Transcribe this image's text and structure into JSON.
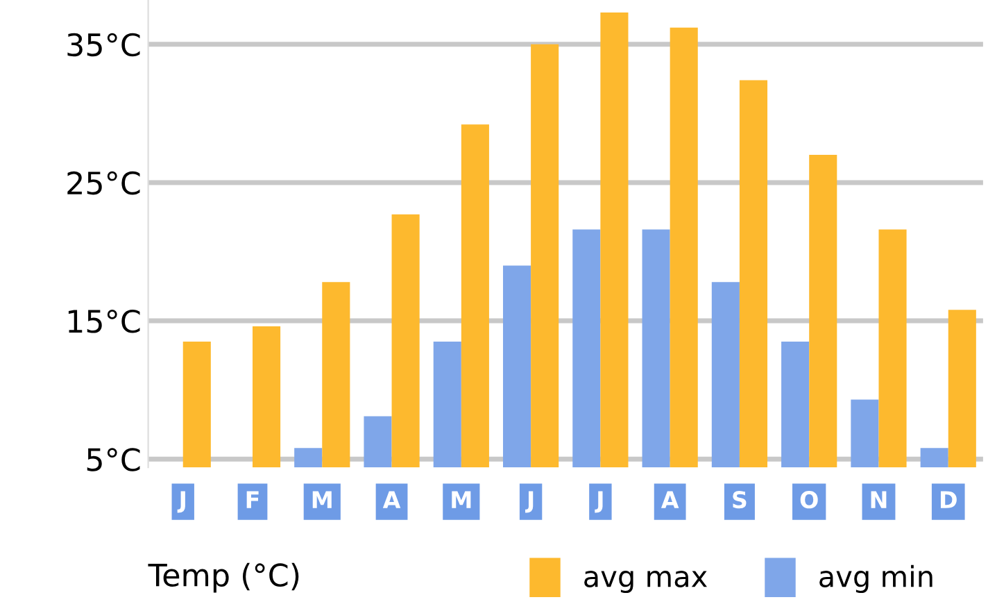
{
  "chart_data": {
    "type": "bar",
    "categories": [
      "J",
      "F",
      "M",
      "A",
      "M",
      "J",
      "J",
      "A",
      "S",
      "O",
      "N",
      "D"
    ],
    "series": [
      {
        "name": "avg min",
        "color": "#7fa6e9",
        "values": [
          null,
          null,
          5.8,
          8.1,
          13.5,
          19.0,
          21.6,
          21.6,
          17.8,
          13.5,
          9.3,
          5.8
        ]
      },
      {
        "name": "avg max",
        "color": "#fdb92e",
        "values": [
          13.5,
          14.6,
          17.8,
          22.7,
          29.2,
          35.0,
          37.3,
          36.2,
          32.4,
          27.0,
          21.6,
          15.8
        ]
      }
    ],
    "legend_title": "Temp (°C)",
    "legend": "bottom",
    "grid": "y",
    "ylim": [
      4.4,
      38.2
    ],
    "yticks": [
      {
        "value": 5,
        "label": "5°C"
      },
      {
        "value": 15,
        "label": "15°C"
      },
      {
        "value": 25,
        "label": "25°C"
      },
      {
        "value": 35,
        "label": "35°C"
      }
    ]
  }
}
